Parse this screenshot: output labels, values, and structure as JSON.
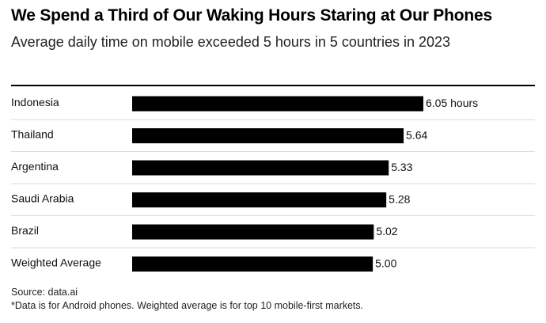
{
  "header": {
    "title": "We Spend a Third of Our Waking Hours Staring at Our Phones",
    "subtitle": "Average daily time on mobile exceeded 5 hours in 5 countries in 2023"
  },
  "footer": {
    "source": "Source: data.ai",
    "note": "*Data is for Android phones. Weighted average is for top 10 mobile-first markets."
  },
  "colors": {
    "bar": "#000000",
    "separator": "#d9d9d9"
  },
  "chart_data": {
    "type": "bar",
    "orientation": "horizontal",
    "categories": [
      "Indonesia",
      "Thailand",
      "Argentina",
      "Saudi Arabia",
      "Brazil",
      "Weighted Average"
    ],
    "values": [
      6.05,
      5.64,
      5.33,
      5.28,
      5.02,
      5.0
    ],
    "value_labels": [
      "6.05 hours",
      "5.64",
      "5.33",
      "5.28",
      "5.02",
      "5.00"
    ],
    "xlim": [
      0,
      6.05
    ],
    "grid": false,
    "legend": "none"
  }
}
